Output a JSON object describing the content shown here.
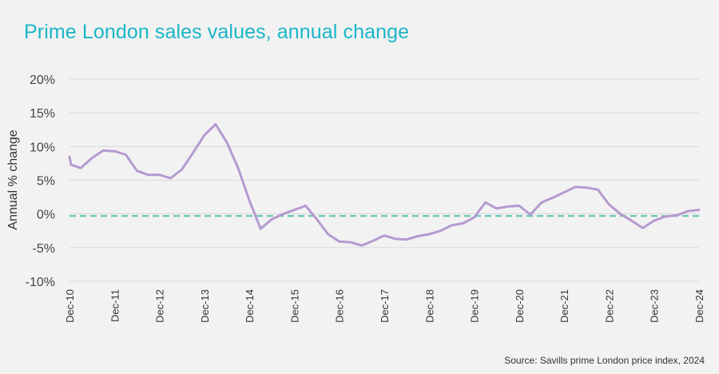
{
  "title": "Prime London sales values, annual change",
  "source": "Source: Savills prime London price index, 2024",
  "colors": {
    "title": "#1ab6c8",
    "line": "#b59ad0",
    "reference": "#56c2b2",
    "grid": "#d9d9d9"
  },
  "chart_data": {
    "type": "line",
    "title": "Prime London sales values, annual change",
    "xlabel": "",
    "ylabel": "Annual % change",
    "ylim": [
      -10,
      20
    ],
    "yticks": [
      20,
      15,
      10,
      5,
      0,
      -5,
      -10
    ],
    "ytick_labels": [
      "20%",
      "15%",
      "10%",
      "5%",
      "0%",
      "-5%",
      "-10%"
    ],
    "xlim": [
      2010.917,
      2024.917
    ],
    "xticks": [
      2010.917,
      2011.917,
      2012.917,
      2013.917,
      2014.917,
      2015.917,
      2016.917,
      2017.917,
      2018.917,
      2019.917,
      2020.917,
      2021.917,
      2022.917,
      2023.917,
      2024.917
    ],
    "xtick_labels": [
      "Dec-10",
      "Dec-11",
      "Dec-12",
      "Dec-13",
      "Dec-14",
      "Dec-15",
      "Dec-16",
      "Dec-17",
      "Dec-18",
      "Dec-19",
      "Dec-20",
      "Dec-21",
      "Dec-22",
      "Dec-23",
      "Dec-24"
    ],
    "grid": true,
    "reference_line": {
      "y": -0.3,
      "style": "dashed"
    },
    "series": [
      {
        "name": "Prime London sales values, annual change",
        "x": [
          2010.917,
          2010.95,
          2011.167,
          2011.417,
          2011.667,
          2011.917,
          2012.167,
          2012.417,
          2012.667,
          2012.917,
          2013.167,
          2013.417,
          2013.667,
          2013.917,
          2014.167,
          2014.417,
          2014.667,
          2014.917,
          2015.167,
          2015.417,
          2015.667,
          2015.917,
          2016.167,
          2016.417,
          2016.667,
          2016.917,
          2017.167,
          2017.417,
          2017.667,
          2017.917,
          2018.167,
          2018.417,
          2018.667,
          2018.917,
          2019.167,
          2019.417,
          2019.667,
          2019.917,
          2020.167,
          2020.417,
          2020.667,
          2020.917,
          2021.167,
          2021.417,
          2021.667,
          2021.917,
          2022.167,
          2022.417,
          2022.667,
          2022.917,
          2023.167,
          2023.417,
          2023.667,
          2023.917,
          2024.167,
          2024.417,
          2024.667,
          2024.917
        ],
        "values": [
          8.5,
          7.3,
          6.8,
          8.3,
          9.4,
          9.3,
          8.8,
          6.4,
          5.8,
          5.8,
          5.3,
          6.6,
          9.1,
          11.7,
          13.3,
          10.6,
          6.8,
          2.0,
          -2.2,
          -0.8,
          0.0,
          0.6,
          1.2,
          -0.8,
          -3.0,
          -4.1,
          -4.2,
          -4.7,
          -4.0,
          -3.2,
          -3.7,
          -3.8,
          -3.3,
          -3.0,
          -2.5,
          -1.7,
          -1.4,
          -0.5,
          1.7,
          0.8,
          1.1,
          1.2,
          -0.1,
          1.7,
          2.4,
          3.2,
          4.0,
          3.9,
          3.6,
          1.4,
          0.0,
          -1.0,
          -2.1,
          -1.0,
          -0.4,
          -0.2,
          0.4,
          0.6
        ]
      }
    ]
  }
}
